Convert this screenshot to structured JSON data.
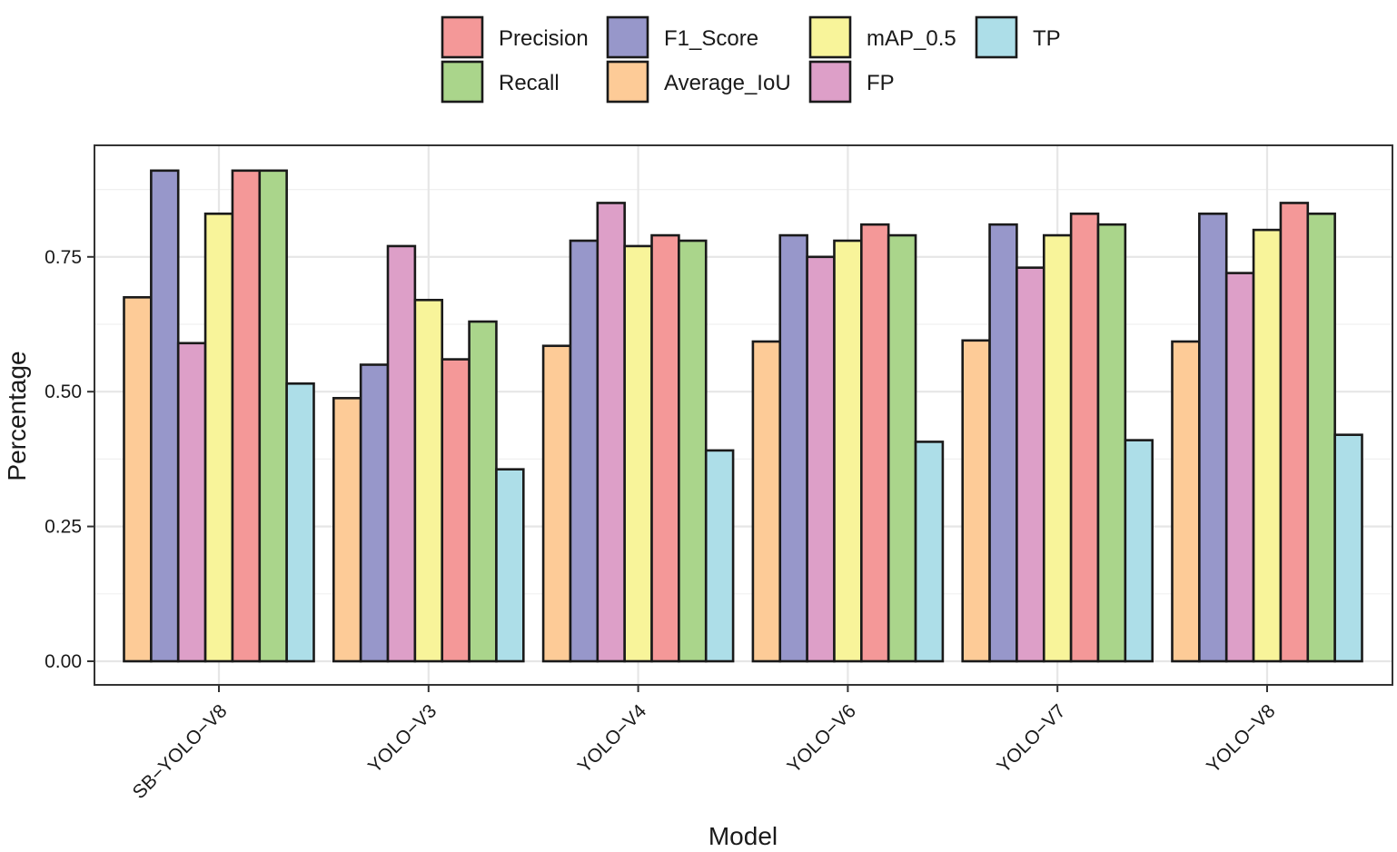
{
  "chart_data": {
    "type": "bar",
    "xlabel": "Model",
    "ylabel": "Percentage",
    "ylim": [
      -0.05,
      0.95
    ],
    "yticks": [
      0.0,
      0.25,
      0.5,
      0.75
    ],
    "ytick_labels": [
      "0.00",
      "0.25",
      "0.50",
      "0.75"
    ],
    "grid": true,
    "legend_position": "top",
    "categories": [
      "SB−YOLO−V8",
      "YOLO−V3",
      "YOLO−V4",
      "YOLO−V6",
      "YOLO−V7",
      "YOLO−V8"
    ],
    "legend_order": [
      "Precision",
      "Recall",
      "F1_Score",
      "Average_IoU",
      "mAP_0.5",
      "FP",
      "TP"
    ],
    "series": [
      {
        "name": "Average_IoU",
        "color": "#FDCB97",
        "values": [
          0.675,
          0.488,
          0.585,
          0.593,
          0.595,
          0.593
        ]
      },
      {
        "name": "F1_Score",
        "color": "#9797CA",
        "values": [
          0.91,
          0.55,
          0.78,
          0.79,
          0.81,
          0.83
        ]
      },
      {
        "name": "FP",
        "color": "#DD9FC8",
        "values": [
          0.59,
          0.77,
          0.85,
          0.75,
          0.73,
          0.72
        ]
      },
      {
        "name": "mAP_0.5",
        "color": "#F8F49A",
        "values": [
          0.83,
          0.67,
          0.77,
          0.78,
          0.79,
          0.8
        ]
      },
      {
        "name": "Precision",
        "color": "#F49898",
        "values": [
          0.91,
          0.56,
          0.79,
          0.81,
          0.83,
          0.85
        ]
      },
      {
        "name": "Recall",
        "color": "#AAD58B",
        "values": [
          0.91,
          0.63,
          0.78,
          0.79,
          0.81,
          0.83
        ]
      },
      {
        "name": "TP",
        "color": "#ADDEE8",
        "values": [
          0.515,
          0.356,
          0.391,
          0.407,
          0.41,
          0.42
        ]
      }
    ]
  }
}
